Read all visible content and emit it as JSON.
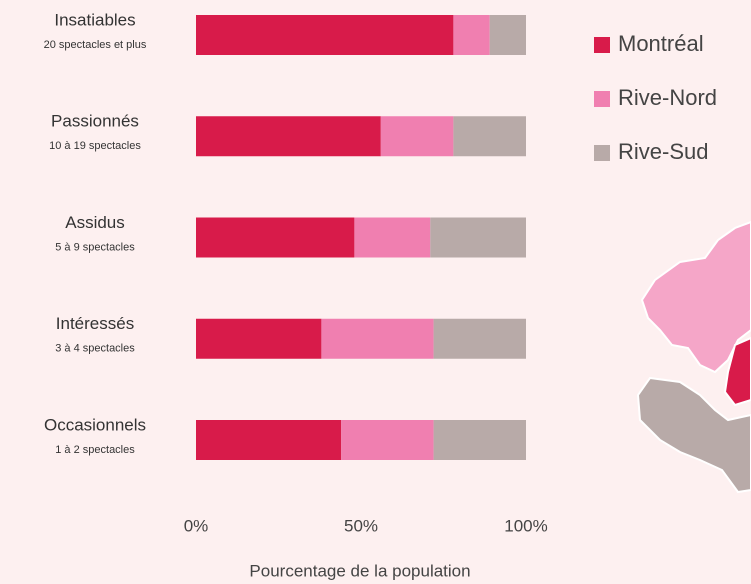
{
  "chart_data": {
    "type": "stacked-bar-horizontal",
    "categories": [
      "Insatiables",
      "Passionnés",
      "Assidus",
      "Intéressés",
      "Occasionnels"
    ],
    "category_details": [
      "20 spectacles et plus",
      "10 à 19 spectacles",
      "5 à 9 spectacles",
      "3 à 4 spectacles",
      "1 à 2 spectacles"
    ],
    "series": [
      {
        "name": "Montréal",
        "color": "#d81b4a",
        "values": [
          78,
          56,
          48,
          38,
          44
        ]
      },
      {
        "name": "Rive-Nord",
        "color": "#f07fb0",
        "values": [
          11,
          22,
          23,
          34,
          28
        ]
      },
      {
        "name": "Rive-Sud",
        "color": "#b8aaa8",
        "values": [
          11,
          22,
          29,
          28,
          28
        ]
      }
    ],
    "xlim": [
      0,
      100
    ],
    "xticks": [
      {
        "value": 0,
        "label": "0%"
      },
      {
        "value": 50,
        "label": "50%"
      },
      {
        "value": 100,
        "label": "100%"
      }
    ],
    "x_label": "Pourcentage de la population",
    "legend": "right"
  }
}
